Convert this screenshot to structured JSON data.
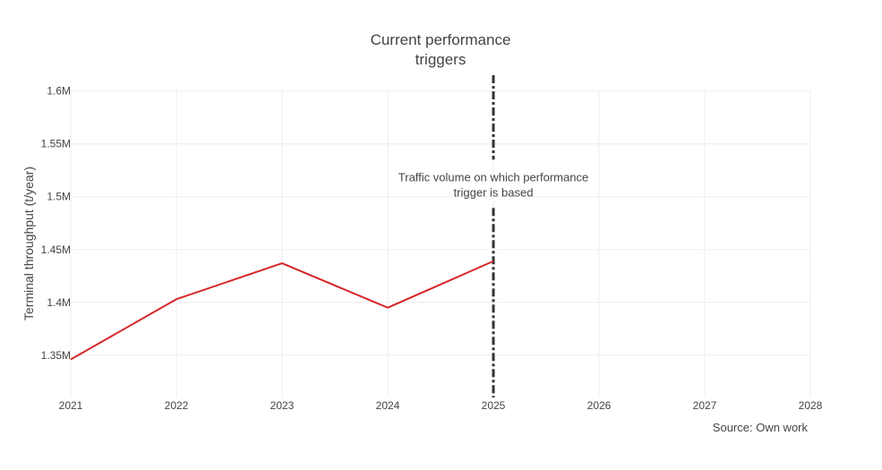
{
  "chart_data": {
    "type": "line",
    "title_lines": [
      "Current performance",
      "triggers"
    ],
    "ylabel": "Terminal throughput (t/year)",
    "xlabel": "",
    "x_ticks": [
      "2021",
      "2022",
      "2023",
      "2024",
      "2025",
      "2026",
      "2027",
      "2028"
    ],
    "y_ticks": [
      {
        "value": 1350000,
        "label": "1.35M"
      },
      {
        "value": 1400000,
        "label": "1.4M"
      },
      {
        "value": 1450000,
        "label": "1.45M"
      },
      {
        "value": 1500000,
        "label": "1.5M"
      },
      {
        "value": 1550000,
        "label": "1.55M"
      },
      {
        "value": 1600000,
        "label": "1.6M"
      }
    ],
    "xlim": [
      2021,
      2028
    ],
    "ylim": [
      1310000,
      1615000
    ],
    "grid": true,
    "series": [
      {
        "x": [
          2021,
          2022,
          2023,
          2024,
          2025
        ],
        "values": [
          1346000,
          1403000,
          1437000,
          1395000,
          1439000
        ],
        "color": "#d62728"
      }
    ],
    "reference_line": {
      "x": 2025,
      "color": "#333333",
      "style": "dash-dot"
    },
    "annotation": {
      "lines": [
        "Traffic volume on which performance",
        "trigger is based"
      ],
      "x": 2025,
      "y": 1508000
    },
    "source_note": "Source: Own work"
  }
}
